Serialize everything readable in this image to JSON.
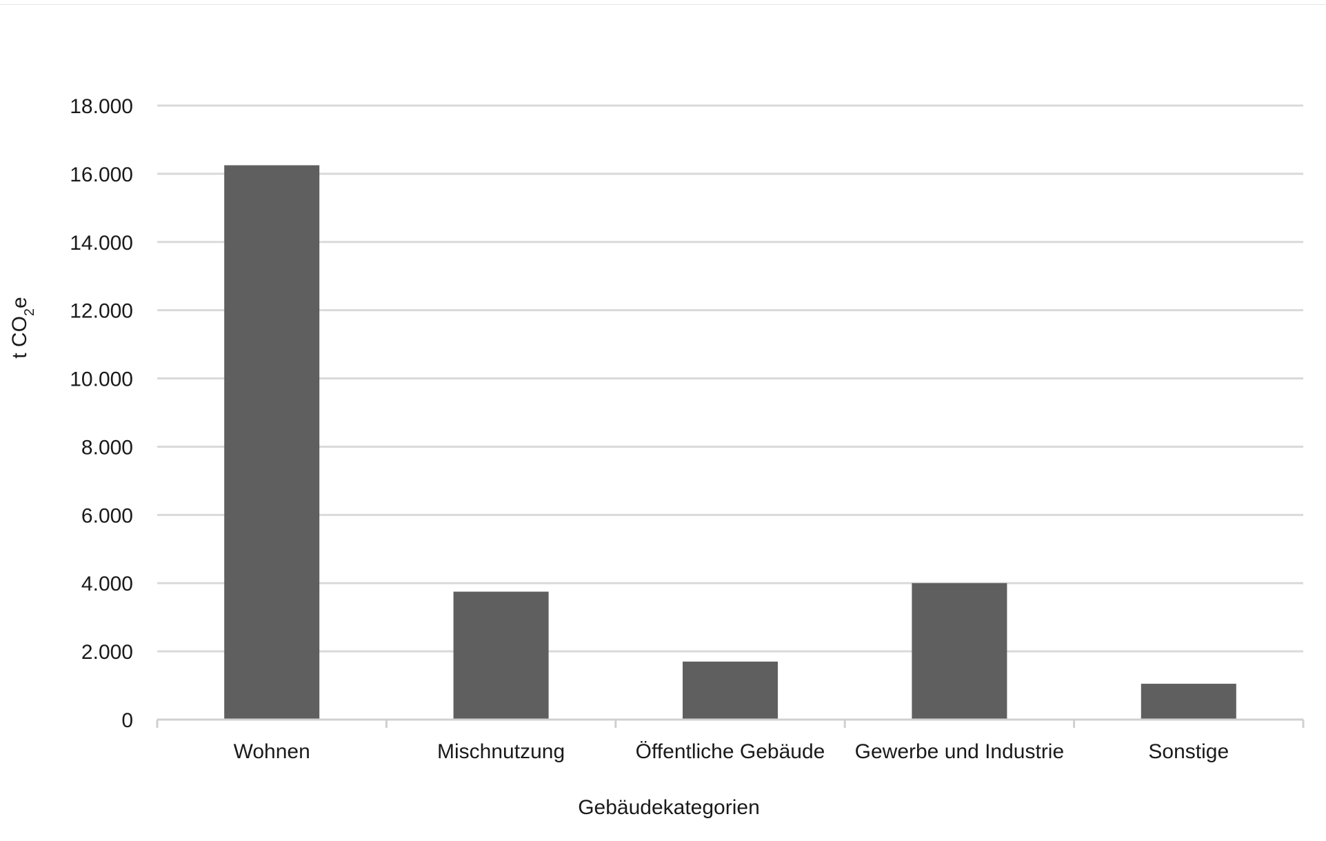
{
  "chart_data": {
    "type": "bar",
    "categories": [
      "Wohnen",
      "Mischnutzung",
      "Öffentliche Gebäude",
      "Gewerbe und Industrie",
      "Sonstige"
    ],
    "values": [
      16250,
      3750,
      1700,
      4000,
      1050
    ],
    "xlabel": "Gebäudekategorien",
    "ylabel": {
      "prefix": "t CO",
      "subscript": "2",
      "suffix": "e"
    },
    "ylim": [
      0,
      18000
    ],
    "yticks": [
      0,
      2000,
      4000,
      6000,
      8000,
      10000,
      12000,
      14000,
      16000,
      18000
    ],
    "ytick_labels": [
      "0",
      "2.000",
      "4.000",
      "6.000",
      "8.000",
      "10.000",
      "12.000",
      "14.000",
      "16.000",
      "18.000"
    ],
    "grid": true,
    "legend": "none",
    "colors": {
      "bar": "#5f5f5f",
      "grid": "#d9d9d9",
      "axis": "#d0d0d0"
    }
  }
}
